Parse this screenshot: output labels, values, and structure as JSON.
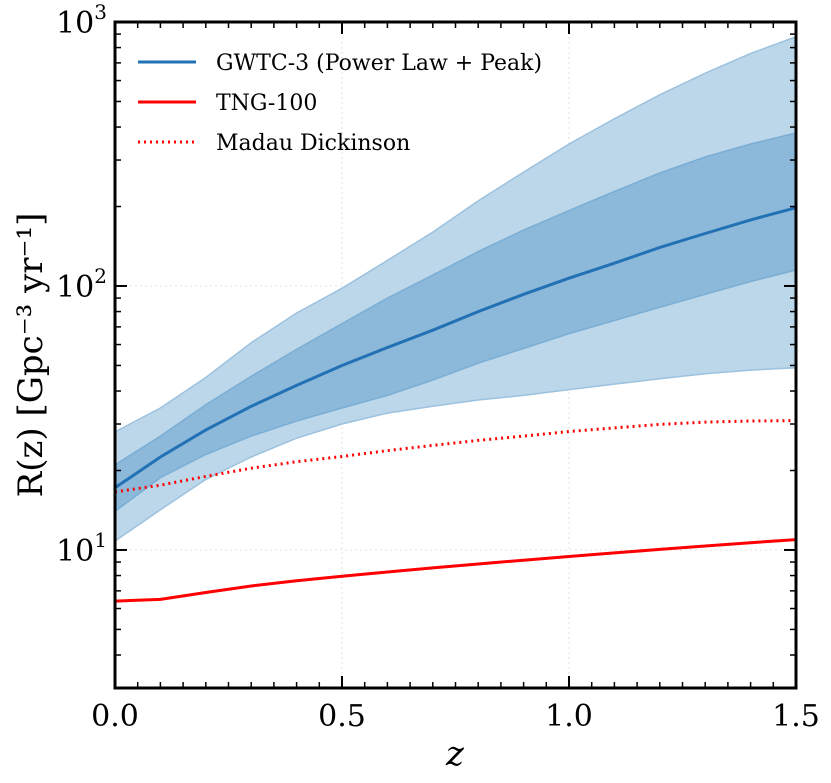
{
  "chart_data": {
    "type": "line",
    "xlabel": "z",
    "ylabel": "R(z) [Gpc⁻³ yr⁻¹]",
    "xlim": [
      0.0,
      1.5
    ],
    "ylim": [
      3.0,
      1000.0
    ],
    "yscale": "log",
    "grid": true,
    "legend_position": "top-left",
    "x_ticks": [
      "0.0",
      "0.5",
      "1.0",
      "1.5"
    ],
    "y_ticks": [
      {
        "value": 10,
        "base": "10",
        "exp": "1"
      },
      {
        "value": 100,
        "base": "10",
        "exp": "2"
      },
      {
        "value": 1000,
        "base": "10",
        "exp": "3"
      }
    ],
    "colors": {
      "gwtc": "#2271b5",
      "band_outer": "#bcd6ea",
      "band_inner": "#8cb8da",
      "tng": "#ff0000",
      "madau": "#ff0000"
    },
    "series": [
      {
        "name": "GWTC-3 (Power Law + Peak)",
        "style": "solid",
        "x": [
          0.0,
          0.1,
          0.2,
          0.3,
          0.4,
          0.5,
          0.6,
          0.7,
          0.8,
          0.9,
          1.0,
          1.1,
          1.2,
          1.3,
          1.4,
          1.5
        ],
        "median": [
          17.2,
          22.5,
          28.5,
          35.0,
          42.0,
          50.0,
          58.5,
          68.0,
          80.0,
          93.0,
          107.0,
          122.0,
          140.0,
          158.0,
          178.0,
          198.0
        ],
        "inner_lower": [
          14.0,
          18.8,
          23.0,
          27.0,
          30.8,
          34.5,
          38.5,
          44.0,
          51.0,
          58.0,
          66.0,
          74.0,
          83.0,
          93.0,
          104.0,
          115.0
        ],
        "inner_upper": [
          21.0,
          27.0,
          35.5,
          45.5,
          57.5,
          72.0,
          90.0,
          110.0,
          135.0,
          163.0,
          193.0,
          228.0,
          268.0,
          308.0,
          345.0,
          380.0
        ],
        "outer_lower": [
          10.8,
          14.2,
          18.5,
          22.5,
          26.5,
          30.0,
          33.0,
          35.0,
          37.0,
          38.5,
          40.5,
          42.5,
          44.5,
          46.5,
          48.0,
          49.0
        ],
        "outer_upper": [
          28.0,
          34.5,
          45.0,
          61.0,
          79.0,
          98.0,
          125.0,
          160.0,
          210.0,
          270.0,
          345.0,
          430.0,
          530.0,
          640.0,
          760.0,
          880.0
        ]
      },
      {
        "name": "TNG-100",
        "style": "solid",
        "x": [
          0.0,
          0.1,
          0.2,
          0.3,
          0.4,
          0.5,
          0.6,
          0.7,
          0.8,
          0.9,
          1.0,
          1.1,
          1.2,
          1.3,
          1.4,
          1.5
        ],
        "values": [
          6.4,
          6.5,
          6.9,
          7.3,
          7.65,
          7.95,
          8.25,
          8.55,
          8.85,
          9.15,
          9.45,
          9.75,
          10.05,
          10.35,
          10.65,
          10.95
        ]
      },
      {
        "name": "Madau Dickinson",
        "style": "dotted",
        "x": [
          0.0,
          0.1,
          0.2,
          0.3,
          0.4,
          0.5,
          0.6,
          0.7,
          0.8,
          0.9,
          1.0,
          1.1,
          1.2,
          1.3,
          1.4,
          1.5
        ],
        "values": [
          16.6,
          17.6,
          19.0,
          20.4,
          21.6,
          22.6,
          23.8,
          24.9,
          26.0,
          27.0,
          28.1,
          29.0,
          29.9,
          30.5,
          30.8,
          30.9
        ]
      }
    ]
  }
}
